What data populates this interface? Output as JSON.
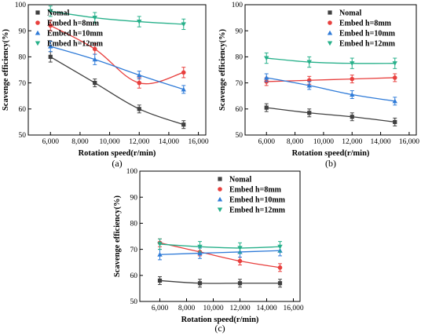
{
  "chart_data": [
    {
      "type": "line",
      "panel_label": "(a)",
      "xlabel": "Rotation speed(r/min)",
      "ylabel": "Scavenge efficiency(%)",
      "xlim": [
        4500,
        16500
      ],
      "ylim": [
        50,
        100
      ],
      "x_ticks": [
        6000,
        8000,
        10000,
        12000,
        14000,
        16000
      ],
      "x_tick_labels": [
        "6,000",
        "8,000",
        "10,000",
        "12,000",
        "14,000",
        "16,000"
      ],
      "y_ticks": [
        50,
        60,
        70,
        80,
        90,
        100
      ],
      "y_tick_labels": [
        "50",
        "60",
        "70",
        "80",
        "90",
        "100"
      ],
      "legend_position": "upper-left",
      "x": [
        6000,
        9000,
        12000,
        15000
      ],
      "series": [
        {
          "name": "Nomal",
          "color": "#404040",
          "marker": "square",
          "values": [
            80,
            70,
            60,
            54
          ],
          "error": [
            2,
            1.5,
            1.5,
            1.5
          ]
        },
        {
          "name": "Embed h=8mm",
          "color": "#e8403e",
          "marker": "circle",
          "values": [
            92,
            83,
            70,
            74
          ],
          "error": [
            2,
            2,
            2,
            2
          ]
        },
        {
          "name": "Embed h=10mm",
          "color": "#2f7bd8",
          "marker": "triangle",
          "values": [
            84,
            79,
            73,
            67.5
          ],
          "error": [
            2,
            2,
            1.5,
            1.5
          ]
        },
        {
          "name": "Embed h=12mm",
          "color": "#27b08a",
          "marker": "triangle-down",
          "values": [
            97.5,
            95,
            93.5,
            92.5
          ],
          "error": [
            2,
            2,
            2,
            2
          ]
        }
      ]
    },
    {
      "type": "line",
      "panel_label": "(b)",
      "xlabel": "Rotation speed(r/min)",
      "ylabel": "Scavenge efficiency(%)",
      "xlim": [
        4500,
        16500
      ],
      "ylim": [
        50,
        100
      ],
      "x_ticks": [
        6000,
        8000,
        10000,
        12000,
        14000,
        16000
      ],
      "x_tick_labels": [
        "6,000",
        "8,000",
        "10,000",
        "12,000",
        "14,000",
        "16,000"
      ],
      "y_ticks": [
        50,
        60,
        70,
        80,
        90,
        100
      ],
      "y_tick_labels": [
        "50",
        "60",
        "70",
        "80",
        "90",
        "100"
      ],
      "legend_position": "upper-right",
      "x": [
        6000,
        9000,
        12000,
        15000
      ],
      "series": [
        {
          "name": "Nomal",
          "color": "#404040",
          "marker": "square",
          "values": [
            60.5,
            58.5,
            57,
            55
          ],
          "error": [
            1.5,
            1.5,
            1.5,
            1.5
          ]
        },
        {
          "name": "Embed h=8mm",
          "color": "#e8403e",
          "marker": "circle",
          "values": [
            70.5,
            71,
            71.5,
            72
          ],
          "error": [
            1.5,
            1.5,
            1.5,
            1.5
          ]
        },
        {
          "name": "Embed h=10mm",
          "color": "#2f7bd8",
          "marker": "triangle",
          "values": [
            72,
            69,
            65.5,
            63
          ],
          "error": [
            1.5,
            1.5,
            1.5,
            1.5
          ]
        },
        {
          "name": "Embed h=12mm",
          "color": "#27b08a",
          "marker": "triangle-down",
          "values": [
            79.5,
            78,
            77.5,
            77.5
          ],
          "error": [
            2,
            2,
            2,
            2
          ]
        }
      ]
    },
    {
      "type": "line",
      "panel_label": "(c)",
      "xlabel": "Rotation speed(r/min)",
      "ylabel": "Scavenge efficiency(%)",
      "xlim": [
        4500,
        16500
      ],
      "ylim": [
        50,
        100
      ],
      "x_ticks": [
        6000,
        8000,
        10000,
        12000,
        14000,
        16000
      ],
      "x_tick_labels": [
        "6,000",
        "8,000",
        "10,000",
        "12,000",
        "14,000",
        "16,000"
      ],
      "y_ticks": [
        50,
        60,
        70,
        80,
        90,
        100
      ],
      "y_tick_labels": [
        "50",
        "60",
        "70",
        "80",
        "90",
        "100"
      ],
      "legend_position": "upper-right",
      "x": [
        6000,
        9000,
        12000,
        15000
      ],
      "series": [
        {
          "name": "Nomal",
          "color": "#404040",
          "marker": "square",
          "values": [
            58,
            57,
            57,
            57
          ],
          "error": [
            1.5,
            1.5,
            1.5,
            1.5
          ]
        },
        {
          "name": "Embed h=8mm",
          "color": "#e8403e",
          "marker": "circle",
          "values": [
            72.5,
            69,
            65.5,
            63
          ],
          "error": [
            1.5,
            1.5,
            1.5,
            1.5
          ]
        },
        {
          "name": "Embed h=10mm",
          "color": "#2f7bd8",
          "marker": "triangle",
          "values": [
            68,
            68.5,
            69,
            69.5
          ],
          "error": [
            2,
            2,
            2,
            2
          ]
        },
        {
          "name": "Embed h=12mm",
          "color": "#27b08a",
          "marker": "triangle-down",
          "values": [
            72,
            71,
            70.5,
            71
          ],
          "error": [
            2,
            2,
            2,
            2
          ]
        }
      ]
    }
  ]
}
